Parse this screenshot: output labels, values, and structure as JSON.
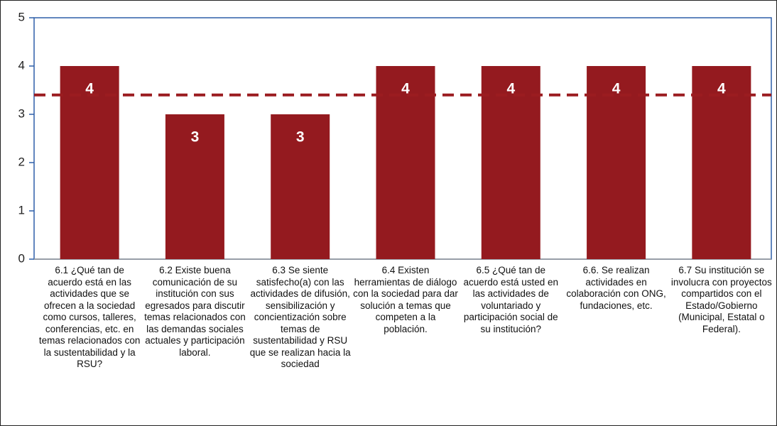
{
  "chart_data": {
    "type": "bar",
    "categories": [
      "6.1 ¿Qué  tan de acuerdo está en las actividades que se ofrecen a la sociedad como cursos, talleres, conferencias, etc. en temas relacionados con la sustentabilidad y la RSU?",
      "6.2 Existe buena comunicación de su institución con sus egresados para discutir temas relacionados con las demandas sociales actuales y participación laboral.",
      "6.3 Se siente satisfecho(a) con las actividades de difusión, sensibilización y concientización sobre temas de sustentabilidad y RSU que se realizan hacia la sociedad",
      "6.4 Existen herramientas de diálogo con la sociedad para dar solución a temas que competen a la población.",
      "6.5 ¿Qué  tan de acuerdo está usted en las actividades de voluntariado y participación social de su institución?",
      "6.6. Se realizan actividades en colaboración con ONG, fundaciones, etc.",
      "6.7 Su institución se involucra con proyectos compartidos con el Estado/Gobierno (Municipal, Estatal o Federal)."
    ],
    "values": [
      4,
      3,
      3,
      4,
      4,
      4,
      4
    ],
    "color": "#941a1f",
    "reference_line": 3.4,
    "reference_color": "#9b1c20",
    "ylim": [
      0,
      5
    ],
    "yticks": [
      0,
      1,
      2,
      3,
      4,
      5
    ]
  }
}
